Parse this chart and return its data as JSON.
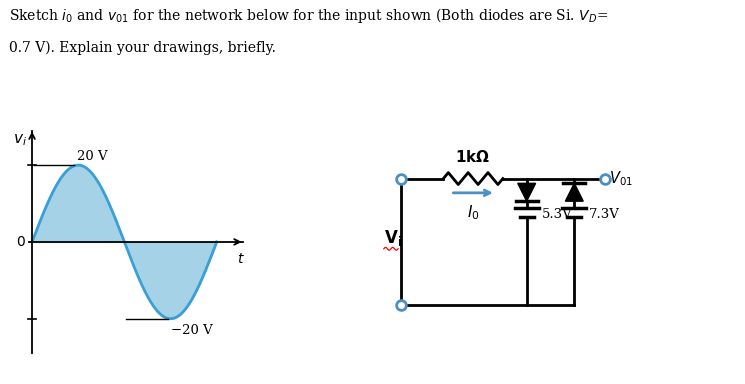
{
  "bg_color": "#ffffff",
  "header_line1": "Sketch $i_0$ and $v_{01}$ for the network below for the input shown (Both diodes are Si. $V_D$=",
  "header_line2": "0.7 V). Explain your drawings, briefly.",
  "waveform": {
    "fill_color": "#89c4e1",
    "fill_alpha": 0.75,
    "line_color": "#3a9fd4",
    "line_width": 2.0,
    "peak": 20,
    "trough": -20,
    "label_peak": "20 V",
    "label_trough": "−20 V"
  },
  "circuit": {
    "wire_color": "#000000",
    "node_color": "#4a90c4",
    "arrow_color": "#4a90c4",
    "resistor_label": "1kΩ",
    "current_label": "$I_0$",
    "battery1_label": "5.3V",
    "battery2_label": "7.3V",
    "vo1_label": "$V_{01}$",
    "vi_label": "$\\mathbf{V_i}$"
  }
}
